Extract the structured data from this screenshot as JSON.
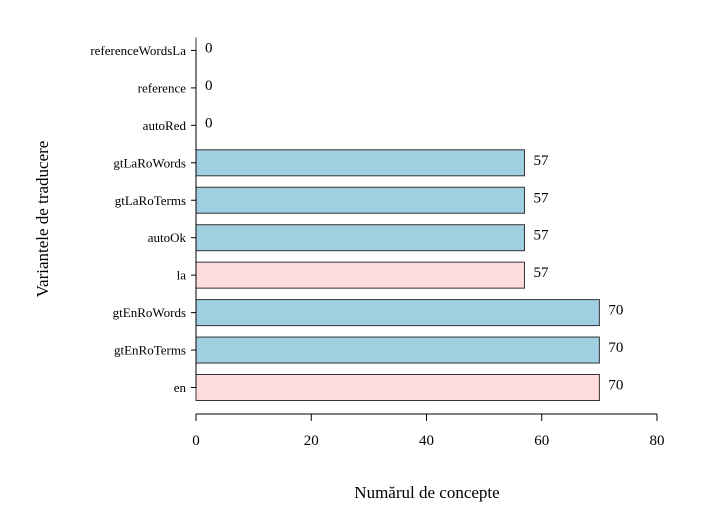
{
  "chart_data": {
    "type": "bar",
    "orientation": "horizontal",
    "ylabel": "Variantele de traducere",
    "xlabel": "Numărul de concepte",
    "xlim": [
      0,
      80
    ],
    "xticks": [
      "0",
      "20",
      "40",
      "60",
      "80"
    ],
    "grid": false,
    "categories": [
      "en",
      "gtEnRoTerms",
      "gtEnRoWords",
      "la",
      "autoOk",
      "gtLaRoTerms",
      "gtLaRoWords",
      "autoRed",
      "reference",
      "referenceWordsLa"
    ],
    "values": [
      70,
      70,
      70,
      57,
      57,
      57,
      57,
      0,
      0,
      0
    ],
    "bar_colors": [
      "#ffdddd",
      "#9fcfe0",
      "#9fcfe0",
      "#ffdddd",
      "#9fcfe0",
      "#9fcfe0",
      "#9fcfe0",
      "#9fcfe0",
      "#9fcfe0",
      "#9fcfe0"
    ],
    "value_labels": [
      "70",
      "70",
      "70",
      "57",
      "57",
      "57",
      "57",
      "0",
      "0",
      "0"
    ]
  }
}
